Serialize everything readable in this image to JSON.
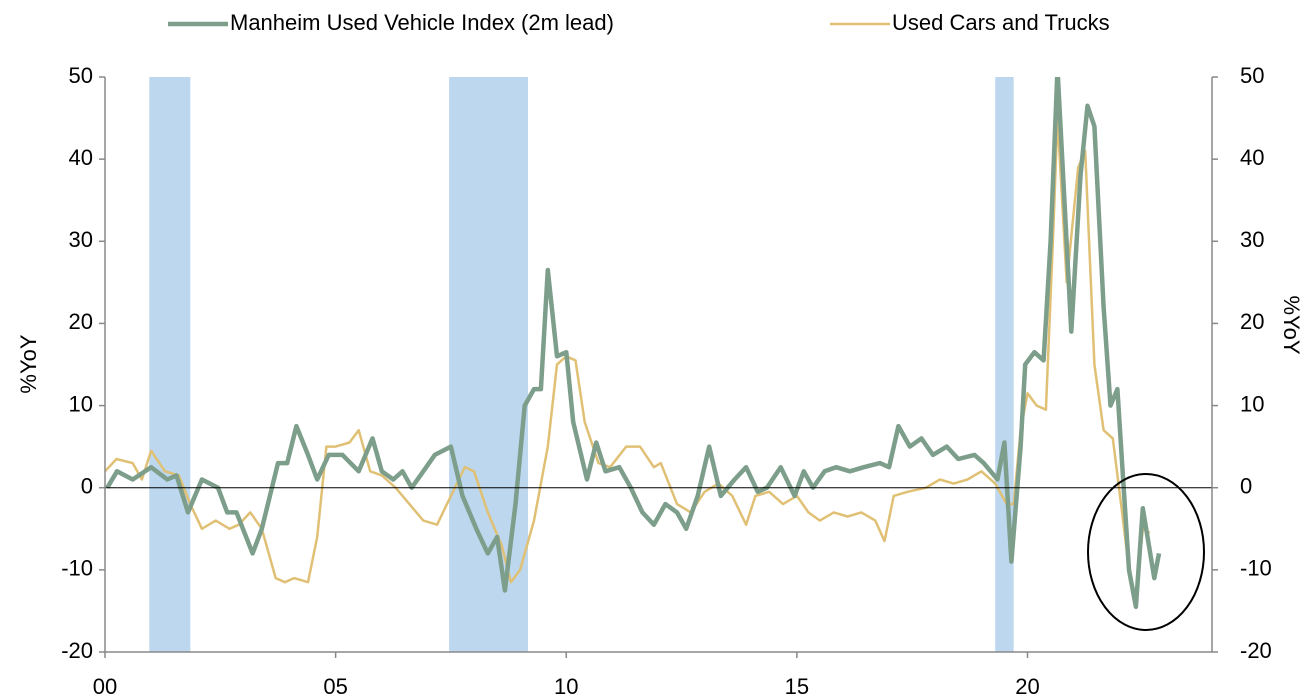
{
  "chart_data": {
    "type": "line",
    "ylabel": "%YoY",
    "y2label": "%YoY",
    "xlim": [
      0,
      24
    ],
    "xticks": [
      {
        "value": 0,
        "label": "00"
      },
      {
        "value": 5,
        "label": "05"
      },
      {
        "value": 10,
        "label": "10"
      },
      {
        "value": 15,
        "label": "15"
      },
      {
        "value": 20,
        "label": "20"
      }
    ],
    "ylim": [
      -20,
      50
    ],
    "yticks": [
      -20,
      -10,
      0,
      10,
      20,
      30,
      40,
      50
    ],
    "y2lim": [
      -20,
      50
    ],
    "y2ticks": [
      -20,
      -10,
      0,
      10,
      20,
      30,
      40,
      50
    ],
    "shaded_periods": [
      [
        0.96,
        1.85
      ],
      [
        7.46,
        9.17
      ],
      [
        19.3,
        19.7
      ]
    ],
    "shade_color": "#bdd7ee",
    "legend": "top",
    "series": [
      {
        "name": "Manheim Used Vehicle Index (2m lead)",
        "color": "#7d9e8b",
        "x": [
          0.05,
          0.26,
          0.6,
          1.0,
          1.35,
          1.55,
          1.8,
          2.1,
          2.45,
          2.65,
          2.85,
          3.2,
          3.4,
          3.75,
          3.95,
          4.15,
          4.4,
          4.6,
          4.85,
          5.15,
          5.5,
          5.8,
          6.0,
          6.25,
          6.45,
          6.65,
          6.9,
          7.15,
          7.5,
          7.75,
          8.05,
          8.3,
          8.5,
          8.67,
          8.9,
          9.1,
          9.3,
          9.45,
          9.6,
          9.8,
          10.0,
          10.15,
          10.45,
          10.65,
          10.85,
          11.15,
          11.4,
          11.65,
          11.9,
          12.15,
          12.4,
          12.6,
          12.85,
          13.1,
          13.35,
          13.65,
          13.9,
          14.15,
          14.35,
          14.65,
          14.95,
          15.15,
          15.35,
          15.6,
          15.85,
          16.15,
          16.45,
          16.8,
          17.0,
          17.2,
          17.45,
          17.7,
          17.95,
          18.25,
          18.5,
          18.85,
          19.05,
          19.35,
          19.5,
          19.65,
          19.85,
          19.95,
          20.15,
          20.35,
          20.5,
          20.65,
          20.8,
          20.95,
          21.15,
          21.3,
          21.45,
          21.65,
          21.8,
          21.95,
          22.05,
          22.2,
          22.35,
          22.5,
          22.75,
          22.85
        ],
        "values": [
          0,
          2,
          1,
          2.5,
          1,
          1.5,
          -3,
          1,
          0,
          -3,
          -3,
          -8,
          -5,
          3,
          3,
          7.5,
          4,
          1,
          4,
          4,
          2,
          6,
          2,
          1,
          2,
          0,
          2,
          4,
          5,
          -1,
          -5,
          -8,
          -6,
          -12.5,
          -2,
          10,
          12,
          12,
          26.5,
          16,
          16.5,
          8,
          1,
          5.5,
          2,
          2.5,
          0,
          -3,
          -4.5,
          -2,
          -3,
          -5,
          -1,
          5,
          -1,
          1,
          2.5,
          -0.5,
          0,
          2.5,
          -1,
          2,
          0,
          2,
          2.5,
          2,
          2.5,
          3,
          2.5,
          7.5,
          5,
          6,
          4,
          5,
          3.5,
          4,
          3,
          1,
          5.5,
          -9,
          5,
          15,
          16.5,
          15.5,
          30,
          51,
          35,
          19,
          38,
          46.5,
          44,
          22,
          10,
          12,
          3,
          -10,
          -14.5,
          -2.5,
          -11,
          -8
        ]
      },
      {
        "name": "Used Cars and Trucks",
        "color": "#e0c074",
        "x": [
          0,
          0.25,
          0.6,
          0.8,
          1.0,
          1.3,
          1.6,
          1.85,
          2.1,
          2.4,
          2.7,
          2.9,
          3.15,
          3.4,
          3.7,
          3.9,
          4.1,
          4.4,
          4.6,
          4.8,
          5.0,
          5.3,
          5.5,
          5.75,
          6.0,
          6.3,
          6.6,
          6.9,
          7.2,
          7.5,
          7.8,
          8.0,
          8.3,
          8.6,
          8.8,
          9.0,
          9.3,
          9.6,
          9.8,
          10.0,
          10.2,
          10.4,
          10.7,
          10.95,
          11.3,
          11.6,
          11.9,
          12.05,
          12.4,
          12.7,
          13.0,
          13.3,
          13.6,
          13.9,
          14.1,
          14.4,
          14.7,
          15.0,
          15.25,
          15.5,
          15.8,
          16.1,
          16.4,
          16.7,
          16.9,
          17.1,
          17.4,
          17.8,
          18.1,
          18.4,
          18.7,
          19.0,
          19.3,
          19.55,
          19.7,
          19.85,
          20.0,
          20.2,
          20.4,
          20.55,
          20.65,
          20.85,
          21.1,
          21.25,
          21.45,
          21.65,
          21.85,
          22.05,
          22.2,
          22.35,
          22.5,
          22.65
        ],
        "values": [
          2,
          3.5,
          3,
          1,
          4.5,
          2,
          1.5,
          -2,
          -5,
          -4,
          -5,
          -4.5,
          -3,
          -5,
          -11,
          -11.5,
          -11,
          -11.5,
          -6,
          5,
          5,
          5.5,
          7,
          2,
          1.5,
          0,
          -2,
          -4,
          -4.5,
          -1,
          2.5,
          2,
          -3,
          -7,
          -11.5,
          -10,
          -4,
          5,
          15,
          16,
          15.5,
          8,
          3,
          2.5,
          5,
          5,
          2.5,
          3,
          -2,
          -3,
          -0.5,
          0.5,
          -1,
          -4.5,
          -1,
          -0.5,
          -2,
          -1,
          -3,
          -4,
          -3,
          -3.5,
          -3,
          -4,
          -6.5,
          -1,
          -0.5,
          0,
          1,
          0.5,
          1,
          2,
          0.5,
          -2,
          -2,
          7,
          11.5,
          10,
          9.5,
          30,
          45,
          25,
          39,
          41,
          15,
          7,
          6,
          -3,
          -10,
          -13.5,
          -5,
          -5.5
        ]
      }
    ]
  }
}
